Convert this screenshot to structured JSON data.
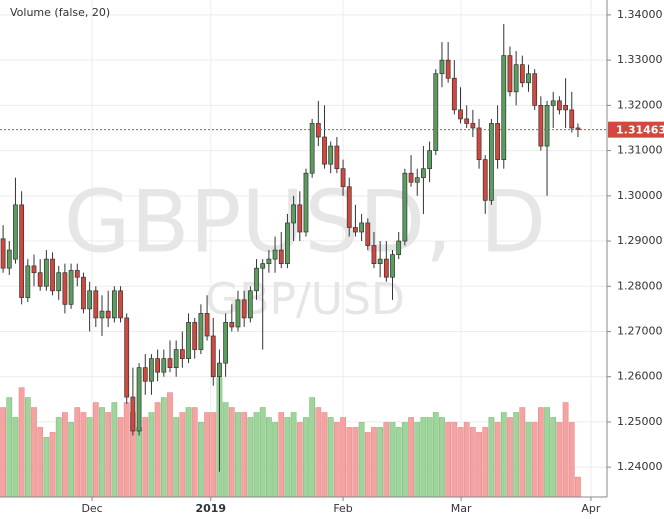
{
  "chart_data": {
    "type": "candlestick",
    "indicator_label": "Volume (false, 20)",
    "watermark": "GBPUSD, D",
    "watermark_sub": "GBP/USD",
    "up_color": "#5a9e5e",
    "down_color": "#d2483f",
    "volume_up_color": "#9fd49c",
    "volume_down_color": "#f4a3a3",
    "open": [
      1.2905,
      1.284,
      1.286,
      1.298,
      1.2775,
      1.2845,
      1.283,
      1.28,
      1.286,
      1.279,
      1.283,
      1.276,
      1.2835,
      1.282,
      1.275,
      1.279,
      1.273,
      1.2745,
      1.273,
      1.279,
      1.273,
      1.2555,
      1.248,
      1.262,
      1.259,
      1.264,
      1.261,
      1.264,
      1.262,
      1.266,
      1.264,
      1.272,
      1.266,
      1.274,
      1.269,
      1.26,
      1.263,
      1.272,
      1.271,
      1.277,
      1.273,
      1.279,
      1.284,
      1.285,
      1.286,
      1.288,
      1.285,
      1.294,
      1.298,
      1.292,
      1.305,
      1.316,
      1.313,
      1.307,
      1.311,
      1.306,
      1.302,
      1.293,
      1.292,
      1.294,
      1.289,
      1.285,
      1.286,
      1.282,
      1.287,
      1.29,
      1.305,
      1.303,
      1.304,
      1.306,
      1.31,
      1.327,
      1.33,
      1.326,
      1.319,
      1.317,
      1.316,
      1.315,
      1.308,
      1.299,
      1.316,
      1.308,
      1.331,
      1.323,
      1.329,
      1.325,
      1.327,
      1.32,
      1.311,
      1.32,
      1.321,
      1.32,
      1.319,
      1.315
    ],
    "high": [
      1.2935,
      1.29,
      1.304,
      1.301,
      1.286,
      1.287,
      1.286,
      1.288,
      1.2875,
      1.2845,
      1.285,
      1.285,
      1.285,
      1.283,
      1.281,
      1.28,
      1.278,
      1.279,
      1.28,
      1.28,
      1.274,
      1.262,
      1.263,
      1.265,
      1.265,
      1.266,
      1.266,
      1.268,
      1.268,
      1.27,
      1.274,
      1.273,
      1.276,
      1.278,
      1.273,
      1.266,
      1.274,
      1.276,
      1.279,
      1.279,
      1.28,
      1.286,
      1.286,
      1.288,
      1.291,
      1.292,
      1.296,
      1.3,
      1.301,
      1.306,
      1.317,
      1.321,
      1.32,
      1.312,
      1.313,
      1.308,
      1.304,
      1.298,
      1.296,
      1.295,
      1.292,
      1.29,
      1.29,
      1.288,
      1.292,
      1.306,
      1.309,
      1.306,
      1.311,
      1.312,
      1.328,
      1.334,
      1.334,
      1.33,
      1.324,
      1.32,
      1.319,
      1.317,
      1.309,
      1.317,
      1.32,
      1.338,
      1.333,
      1.332,
      1.331,
      1.329,
      1.328,
      1.322,
      1.321,
      1.323,
      1.322,
      1.326,
      1.323,
      1.316
    ],
    "low": [
      1.283,
      1.2825,
      1.285,
      1.276,
      1.2765,
      1.28,
      1.279,
      1.279,
      1.278,
      1.277,
      1.274,
      1.275,
      1.28,
      1.274,
      1.27,
      1.271,
      1.269,
      1.271,
      1.272,
      1.272,
      1.254,
      1.247,
      1.247,
      1.256,
      1.256,
      1.259,
      1.26,
      1.261,
      1.26,
      1.262,
      1.263,
      1.264,
      1.265,
      1.268,
      1.258,
      1.239,
      1.26,
      1.27,
      1.27,
      1.271,
      1.272,
      1.277,
      1.266,
      1.283,
      1.283,
      1.284,
      1.284,
      1.29,
      1.29,
      1.291,
      1.304,
      1.311,
      1.306,
      1.305,
      1.305,
      1.3,
      1.291,
      1.291,
      1.29,
      1.288,
      1.284,
      1.282,
      1.281,
      1.277,
      1.286,
      1.289,
      1.302,
      1.3,
      1.296,
      1.303,
      1.309,
      1.324,
      1.325,
      1.318,
      1.316,
      1.315,
      1.313,
      1.306,
      1.296,
      1.298,
      1.306,
      1.306,
      1.322,
      1.32,
      1.324,
      1.323,
      1.319,
      1.31,
      1.3,
      1.315,
      1.318,
      1.315,
      1.314,
      1.313
    ],
    "close": [
      1.284,
      1.288,
      1.298,
      1.2775,
      1.2845,
      1.283,
      1.28,
      1.286,
      1.279,
      1.283,
      1.276,
      1.2835,
      1.282,
      1.275,
      1.279,
      1.273,
      1.2745,
      1.273,
      1.279,
      1.273,
      1.2555,
      1.248,
      1.262,
      1.259,
      1.264,
      1.261,
      1.264,
      1.262,
      1.266,
      1.264,
      1.272,
      1.266,
      1.274,
      1.269,
      1.26,
      1.263,
      1.272,
      1.271,
      1.277,
      1.273,
      1.279,
      1.284,
      1.285,
      1.286,
      1.288,
      1.285,
      1.294,
      1.298,
      1.292,
      1.305,
      1.316,
      1.313,
      1.307,
      1.311,
      1.306,
      1.302,
      1.293,
      1.292,
      1.294,
      1.289,
      1.285,
      1.286,
      1.282,
      1.287,
      1.29,
      1.305,
      1.303,
      1.304,
      1.306,
      1.31,
      1.327,
      1.33,
      1.326,
      1.319,
      1.317,
      1.316,
      1.315,
      1.308,
      1.299,
      1.316,
      1.308,
      1.331,
      1.323,
      1.329,
      1.325,
      1.327,
      1.32,
      1.311,
      1.32,
      1.321,
      1.319,
      1.319,
      1.315,
      1.31463
    ],
    "volume": [
      18,
      20,
      16,
      22,
      20,
      18,
      14,
      12,
      13,
      16,
      17,
      15,
      18,
      17,
      16,
      19,
      18,
      17,
      19,
      16,
      19,
      17,
      14,
      16,
      17,
      19,
      20,
      21,
      16,
      17,
      18,
      18,
      15,
      17,
      17,
      24,
      19,
      18,
      17,
      17,
      16,
      17,
      18,
      16,
      15,
      17,
      16,
      17,
      15,
      16,
      20,
      18,
      17,
      16,
      15,
      16,
      14,
      14,
      15,
      13,
      14,
      14,
      15,
      15,
      14,
      15,
      16,
      15,
      16,
      16,
      17,
      16,
      15,
      15,
      14,
      15,
      14,
      13,
      14,
      16,
      15,
      17,
      16,
      17,
      18,
      15,
      15,
      18,
      18,
      16,
      15,
      19,
      15,
      4
    ],
    "volume_lim": [
      0,
      100
    ],
    "last_price": 1.31463,
    "xlim": [
      -0.5,
      97.7
    ],
    "xticks": [
      {
        "value": 14.4,
        "label": "Dec"
      },
      {
        "value": 33.6,
        "label": "2019"
      },
      {
        "value": 55,
        "label": "Feb"
      },
      {
        "value": 74.1,
        "label": "Mar"
      },
      {
        "value": 95.1,
        "label": "Apr"
      }
    ],
    "ylim": [
      1.2334,
      1.3433
    ],
    "yticks": [
      {
        "value": 1.24,
        "label": "1.24000"
      },
      {
        "value": 1.25,
        "label": "1.25000"
      },
      {
        "value": 1.26,
        "label": "1.26000"
      },
      {
        "value": 1.27,
        "label": "1.27000"
      },
      {
        "value": 1.28,
        "label": "1.28000"
      },
      {
        "value": 1.29,
        "label": "1.29000"
      },
      {
        "value": 1.3,
        "label": "1.30000"
      },
      {
        "value": 1.31,
        "label": "1.31000"
      },
      {
        "value": 1.32,
        "label": "1.32000"
      },
      {
        "value": 1.33,
        "label": "1.33000"
      },
      {
        "value": 1.34,
        "label": "1.34000"
      }
    ],
    "grid": true
  }
}
